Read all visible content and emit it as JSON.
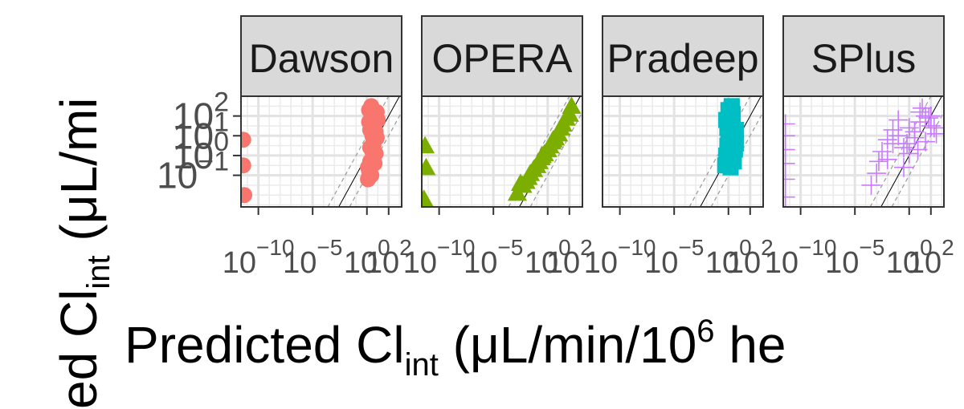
{
  "chart_data": {
    "type": "scatter",
    "facets": [
      "Dawson",
      "OPERA",
      "Pradeep",
      "SPlus"
    ],
    "xlabel": {
      "main": "Predicted Cl",
      "sub": "int",
      "rest": " (μL/min/10",
      "sup": "6",
      "tail": " he"
    },
    "ylabel": {
      "head": "ed Cl",
      "sub": "int",
      "rest": " (μL/mi"
    },
    "x_scale": "log10",
    "y_scale": "log10",
    "xlim_log10": [
      -11.6,
      3.2
    ],
    "ylim_log10": [
      -2.6,
      3.0
    ],
    "x_ticks": [
      {
        "log10": -10,
        "base": "10",
        "exp": "−10"
      },
      {
        "log10": -5,
        "base": "10",
        "exp": "−5"
      },
      {
        "log10": 0,
        "base": "10",
        "exp": "0"
      },
      {
        "log10": 2,
        "base": "10",
        "exp": "2"
      }
    ],
    "y_ticks": [
      {
        "log10": -1,
        "base": "10",
        "exp": "−1"
      },
      {
        "log10": 0,
        "base": "10",
        "exp": "0"
      },
      {
        "log10": 1,
        "base": "10",
        "exp": "1"
      },
      {
        "log10": 2,
        "base": "10",
        "exp": "2"
      }
    ],
    "reference_lines": [
      {
        "type": "identity",
        "offset_log10": 0,
        "style": "solid"
      },
      {
        "type": "identity",
        "offset_log10": 1,
        "style": "dashed"
      },
      {
        "type": "identity",
        "offset_log10": -1,
        "style": "dashed"
      }
    ],
    "grid": true,
    "series": [
      {
        "facet": "Dawson",
        "color": "#F8766D",
        "shape": "circle",
        "x_log10": [
          -11.4,
          -11.4,
          -11.3,
          0.1,
          0.2,
          0.3,
          0.5,
          0.6,
          0.8,
          1.0,
          0.2,
          0.4,
          0.7,
          0.9,
          0.3,
          0.6,
          0.1,
          0.8,
          0.5,
          0.2,
          0.9,
          0.4,
          0.7,
          0.6,
          0.3
        ],
        "y_log10": [
          0.8,
          -0.5,
          -2.0,
          -1.2,
          -0.8,
          -0.3,
          0.2,
          0.7,
          1.2,
          1.8,
          2.3,
          2.5,
          1.5,
          0.9,
          0.4,
          -0.1,
          -0.6,
          0.1,
          1.0,
          1.7,
          2.2,
          -1.0,
          -0.4,
          0.5,
          1.3
        ]
      },
      {
        "facet": "OPERA",
        "color": "#7CAE00",
        "shape": "triangle",
        "x_log10": [
          -11.3,
          -11.2,
          -11.4,
          -2.8,
          -2.3,
          -1.8,
          -1.3,
          -0.8,
          -0.3,
          0.2,
          0.7,
          1.2,
          1.7,
          2.2,
          -2.5,
          -1.6,
          -0.6,
          0.4,
          1.4,
          -2.0,
          -1.0,
          0.0,
          1.0,
          2.0,
          -0.5,
          0.5
        ],
        "y_log10": [
          0.5,
          -0.6,
          -2.2,
          -1.9,
          -1.5,
          -1.1,
          -0.7,
          -0.3,
          0.1,
          0.5,
          0.9,
          1.4,
          1.9,
          2.5,
          -1.4,
          -0.9,
          -0.1,
          0.7,
          1.6,
          -1.3,
          -0.5,
          0.3,
          1.1,
          2.1,
          0.0,
          0.8
        ]
      },
      {
        "facet": "Pradeep",
        "color": "#00BFC4",
        "shape": "square",
        "x_log10": [
          -0.3,
          -0.2,
          -0.1,
          0.0,
          0.1,
          0.2,
          0.3,
          0.4,
          0.5,
          0.6,
          0.7,
          -0.2,
          0.0,
          0.2,
          0.4,
          0.6,
          -0.1,
          0.1,
          0.3,
          0.5,
          0.7,
          0.0,
          0.2,
          0.4,
          0.6
        ],
        "y_log10": [
          -0.5,
          0.0,
          0.5,
          1.0,
          1.5,
          2.0,
          2.5,
          0.2,
          -0.3,
          0.8,
          1.3,
          1.8,
          2.3,
          -0.6,
          0.4,
          0.9,
          1.4,
          1.9,
          2.4,
          0.1,
          0.6,
          1.1,
          1.6,
          2.1,
          0.3
        ]
      },
      {
        "facet": "SPlus",
        "color": "#C77CFF",
        "shape": "plus",
        "x_log10": [
          -11.4,
          -11.4,
          -11.4,
          -11.4,
          -11.4,
          -11.4,
          -3.5,
          -3.0,
          -2.5,
          -2.0,
          -1.5,
          -1.0,
          -0.5,
          0.0,
          0.5,
          1.0,
          1.5,
          2.0,
          2.5,
          -2.0,
          -1.0,
          0.0,
          1.0,
          2.0,
          -1.5,
          0.5,
          1.5,
          -0.5,
          0.8,
          1.8,
          2.3,
          -2.8,
          -0.2,
          1.2
        ],
        "y_log10": [
          1.6,
          1.0,
          0.3,
          -0.4,
          -1.2,
          -2.1,
          -1.5,
          -0.9,
          0.2,
          -0.2,
          0.6,
          1.0,
          0.4,
          1.4,
          0.9,
          1.7,
          2.0,
          1.5,
          1.1,
          0.8,
          1.8,
          0.1,
          2.2,
          2.0,
          1.3,
          1.2,
          0.7,
          -0.6,
          0.3,
          1.9,
          1.4,
          -0.3,
          0.6,
          2.4
        ]
      }
    ]
  }
}
